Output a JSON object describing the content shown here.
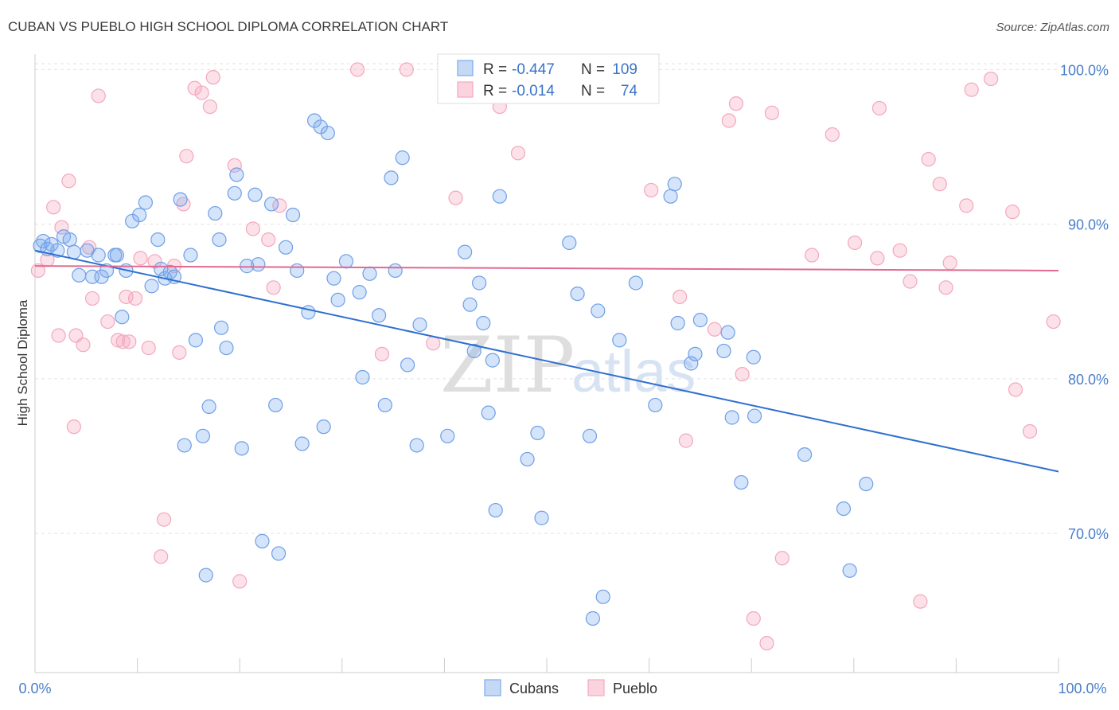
{
  "title": "CUBAN VS PUEBLO HIGH SCHOOL DIPLOMA CORRELATION CHART",
  "source": "Source: ZipAtlas.com",
  "watermark": {
    "zip": "ZIP",
    "atlas": "atlas"
  },
  "legend": {
    "rows": [
      {
        "r_label": "R = ",
        "r_value": "-0.447",
        "n_label": "N = ",
        "n_value": "109"
      },
      {
        "r_label": "R = ",
        "r_value": "-0.014",
        "n_label": "N = ",
        "n_value": "74"
      }
    ]
  },
  "bottom_legend": [
    "Cubans",
    "Pueblo"
  ],
  "chart_data": {
    "type": "scatter",
    "title": "CUBAN VS PUEBLO HIGH SCHOOL DIPLOMA CORRELATION CHART",
    "xlabel": "",
    "ylabel": "High School Diploma",
    "xlim": [
      0,
      100
    ],
    "ylim": [
      61,
      101
    ],
    "x_tick_labels": [
      "0.0%",
      "100.0%"
    ],
    "y_ticks": [
      70,
      80,
      90,
      100
    ],
    "y_tick_labels": [
      "70.0%",
      "80.0%",
      "90.0%",
      "100.0%"
    ],
    "grid": true,
    "colors": {
      "cubans": "#7aaaf0",
      "pueblo": "#f5a8c0",
      "cubans_line": "#2f6fd0",
      "pueblo_line": "#e06a92"
    },
    "series": [
      {
        "name": "Cubans",
        "r": -0.447,
        "n": 109,
        "trend": {
          "x": [
            0,
            100
          ],
          "y": [
            88.3,
            74.0
          ]
        },
        "points": [
          [
            0.5,
            88.6
          ],
          [
            0.8,
            88.9
          ],
          [
            1.2,
            88.4
          ],
          [
            1.6,
            88.7
          ],
          [
            2.2,
            88.3
          ],
          [
            2.8,
            89.2
          ],
          [
            3.4,
            89.0
          ],
          [
            3.8,
            88.2
          ],
          [
            4.3,
            86.7
          ],
          [
            5.1,
            88.3
          ],
          [
            5.6,
            86.6
          ],
          [
            6.2,
            88.0
          ],
          [
            6.5,
            86.6
          ],
          [
            7.0,
            87.0
          ],
          [
            7.8,
            88.0
          ],
          [
            8.5,
            84.0
          ],
          [
            8.9,
            87.0
          ],
          [
            9.5,
            90.2
          ],
          [
            10.2,
            90.6
          ],
          [
            10.8,
            91.4
          ],
          [
            11.4,
            86.0
          ],
          [
            12.0,
            89.0
          ],
          [
            12.3,
            87.1
          ],
          [
            12.7,
            86.5
          ],
          [
            13.2,
            86.9
          ],
          [
            13.6,
            86.6
          ],
          [
            14.2,
            91.6
          ],
          [
            14.6,
            75.7
          ],
          [
            15.2,
            88.0
          ],
          [
            15.7,
            82.5
          ],
          [
            16.4,
            76.3
          ],
          [
            16.7,
            67.3
          ],
          [
            17.0,
            78.2
          ],
          [
            17.6,
            90.7
          ],
          [
            18.2,
            83.3
          ],
          [
            18.7,
            82.0
          ],
          [
            19.5,
            92.0
          ],
          [
            19.7,
            93.2
          ],
          [
            20.2,
            75.5
          ],
          [
            20.7,
            87.3
          ],
          [
            21.5,
            91.9
          ],
          [
            21.8,
            87.4
          ],
          [
            22.2,
            69.5
          ],
          [
            23.1,
            91.3
          ],
          [
            23.5,
            78.3
          ],
          [
            23.8,
            68.7
          ],
          [
            24.5,
            88.5
          ],
          [
            25.2,
            90.6
          ],
          [
            25.6,
            87.0
          ],
          [
            26.1,
            75.8
          ],
          [
            26.7,
            84.3
          ],
          [
            27.3,
            96.7
          ],
          [
            27.9,
            96.3
          ],
          [
            28.2,
            76.9
          ],
          [
            28.6,
            95.9
          ],
          [
            29.2,
            86.5
          ],
          [
            29.6,
            85.1
          ],
          [
            30.4,
            87.6
          ],
          [
            31.7,
            85.6
          ],
          [
            32.0,
            80.1
          ],
          [
            32.7,
            86.8
          ],
          [
            33.6,
            84.1
          ],
          [
            34.2,
            78.3
          ],
          [
            34.8,
            93.0
          ],
          [
            35.2,
            87.0
          ],
          [
            35.9,
            94.3
          ],
          [
            36.4,
            80.9
          ],
          [
            37.3,
            75.7
          ],
          [
            37.6,
            83.5
          ],
          [
            40.3,
            76.3
          ],
          [
            42.0,
            88.2
          ],
          [
            42.5,
            84.8
          ],
          [
            42.9,
            81.8
          ],
          [
            43.4,
            86.2
          ],
          [
            43.8,
            83.6
          ],
          [
            44.3,
            77.8
          ],
          [
            44.7,
            81.2
          ],
          [
            45.0,
            71.5
          ],
          [
            45.4,
            91.8
          ],
          [
            48.1,
            74.8
          ],
          [
            49.1,
            76.5
          ],
          [
            49.5,
            71.0
          ],
          [
            52.2,
            88.8
          ],
          [
            53.0,
            85.5
          ],
          [
            54.2,
            76.3
          ],
          [
            54.5,
            64.5
          ],
          [
            55.0,
            84.4
          ],
          [
            55.5,
            65.9
          ],
          [
            57.1,
            82.5
          ],
          [
            58.7,
            86.2
          ],
          [
            60.6,
            78.3
          ],
          [
            62.1,
            91.8
          ],
          [
            62.5,
            92.6
          ],
          [
            62.8,
            83.6
          ],
          [
            64.1,
            81.0
          ],
          [
            64.5,
            81.6
          ],
          [
            65.0,
            83.8
          ],
          [
            67.3,
            81.8
          ],
          [
            67.7,
            83.0
          ],
          [
            68.1,
            77.5
          ],
          [
            69.0,
            73.3
          ],
          [
            70.2,
            81.4
          ],
          [
            70.3,
            77.6
          ],
          [
            75.2,
            75.1
          ],
          [
            79.0,
            71.6
          ],
          [
            79.6,
            67.6
          ],
          [
            81.2,
            73.2
          ],
          [
            8.0,
            88.0
          ],
          [
            18.0,
            89.0
          ]
        ]
      },
      {
        "name": "Pueblo",
        "r": -0.014,
        "n": 74,
        "trend": {
          "x": [
            0,
            100
          ],
          "y": [
            87.3,
            87.0
          ]
        },
        "points": [
          [
            0.3,
            87.0
          ],
          [
            1.2,
            87.7
          ],
          [
            1.8,
            91.1
          ],
          [
            2.3,
            82.8
          ],
          [
            2.6,
            89.8
          ],
          [
            3.3,
            92.8
          ],
          [
            3.8,
            76.9
          ],
          [
            4.0,
            82.8
          ],
          [
            4.7,
            82.2
          ],
          [
            5.3,
            88.5
          ],
          [
            5.6,
            85.2
          ],
          [
            6.2,
            98.3
          ],
          [
            7.1,
            83.7
          ],
          [
            8.1,
            82.5
          ],
          [
            8.6,
            82.4
          ],
          [
            8.9,
            85.3
          ],
          [
            9.2,
            82.4
          ],
          [
            9.8,
            85.2
          ],
          [
            10.3,
            87.8
          ],
          [
            11.1,
            82.0
          ],
          [
            11.7,
            87.6
          ],
          [
            12.3,
            68.5
          ],
          [
            12.6,
            70.9
          ],
          [
            13.6,
            87.3
          ],
          [
            14.1,
            81.7
          ],
          [
            14.5,
            91.3
          ],
          [
            14.8,
            94.4
          ],
          [
            15.6,
            98.8
          ],
          [
            16.3,
            98.5
          ],
          [
            17.1,
            97.6
          ],
          [
            17.4,
            99.5
          ],
          [
            19.5,
            93.8
          ],
          [
            20.0,
            66.9
          ],
          [
            21.3,
            89.7
          ],
          [
            22.8,
            89.0
          ],
          [
            23.3,
            85.9
          ],
          [
            23.9,
            91.2
          ],
          [
            31.5,
            100.0
          ],
          [
            33.9,
            81.6
          ],
          [
            36.3,
            100.0
          ],
          [
            38.9,
            82.3
          ],
          [
            41.1,
            91.7
          ],
          [
            45.4,
            97.6
          ],
          [
            47.2,
            94.6
          ],
          [
            60.2,
            92.2
          ],
          [
            63.0,
            85.3
          ],
          [
            63.6,
            76.0
          ],
          [
            66.4,
            83.2
          ],
          [
            67.8,
            96.7
          ],
          [
            68.5,
            97.8
          ],
          [
            69.1,
            80.3
          ],
          [
            70.2,
            64.5
          ],
          [
            71.5,
            62.9
          ],
          [
            72.0,
            97.2
          ],
          [
            73.0,
            68.4
          ],
          [
            75.9,
            88.0
          ],
          [
            77.9,
            95.8
          ],
          [
            80.1,
            88.8
          ],
          [
            82.3,
            87.8
          ],
          [
            82.5,
            97.5
          ],
          [
            84.5,
            88.3
          ],
          [
            85.5,
            86.3
          ],
          [
            86.5,
            65.6
          ],
          [
            87.3,
            94.2
          ],
          [
            88.4,
            92.6
          ],
          [
            89.0,
            85.9
          ],
          [
            89.4,
            87.5
          ],
          [
            91.0,
            91.2
          ],
          [
            91.5,
            98.7
          ],
          [
            93.4,
            99.4
          ],
          [
            95.5,
            90.8
          ],
          [
            95.8,
            79.3
          ],
          [
            97.2,
            76.6
          ],
          [
            99.5,
            83.7
          ]
        ]
      }
    ]
  }
}
